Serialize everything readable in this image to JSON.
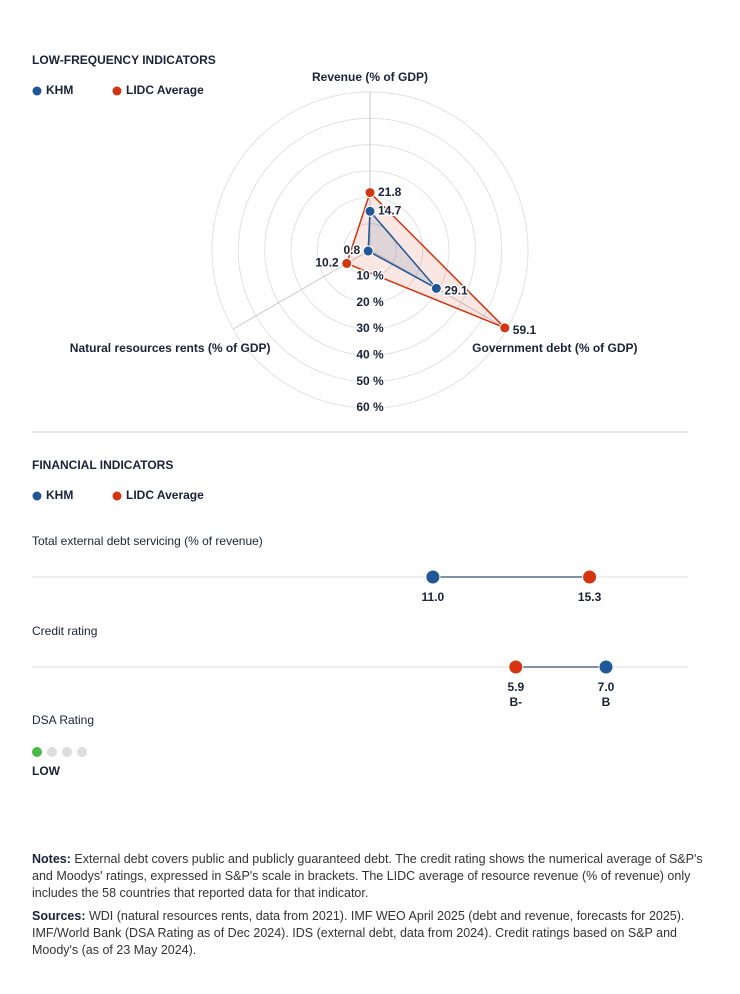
{
  "chart_data": [
    {
      "type": "radar",
      "title": "LOW-FREQUENCY INDICATORS",
      "categories": [
        "Revenue (% of GDP)",
        "Government debt (% of GDP)",
        "Natural resources rents (% of GDP)"
      ],
      "series": [
        {
          "name": "KHM",
          "color": "#1f5797",
          "values": [
            14.7,
            29.1,
            0.8
          ]
        },
        {
          "name": "LIDC Average",
          "color": "#d4340f",
          "values": [
            21.8,
            59.1,
            10.2
          ]
        }
      ],
      "ylim": [
        0,
        60
      ],
      "yticks": [
        {
          "value": 10,
          "label": "10 %"
        },
        {
          "value": 20,
          "label": "20 %"
        },
        {
          "value": 30,
          "label": "30 %"
        },
        {
          "value": 40,
          "label": "40 %"
        },
        {
          "value": 50,
          "label": "50 %"
        },
        {
          "value": 60,
          "label": "60 %"
        }
      ],
      "grid": true
    },
    {
      "type": "dumbbell",
      "title": "FINANCIAL INDICATORS",
      "series": [
        {
          "name": "KHM",
          "color": "#1f5797"
        },
        {
          "name": "LIDC Average",
          "color": "#d4340f"
        }
      ],
      "panels": [
        {
          "label": "Total external debt servicing (% of revenue)",
          "values": [
            11.0,
            15.3
          ],
          "value_labels": [
            "11.0",
            "15.3"
          ],
          "xlim": [
            0,
            18
          ]
        },
        {
          "label": "Credit rating",
          "values": [
            7.0,
            5.9
          ],
          "value_labels": [
            "7.0",
            "5.9"
          ],
          "ratings": [
            "B",
            "B-"
          ],
          "xlim": [
            0,
            8
          ]
        }
      ]
    }
  ],
  "dsa": {
    "title": "DSA Rating",
    "rating": "LOW",
    "scale_size": 4,
    "position": 1,
    "color": "#4cb84a"
  },
  "notes": {
    "label": "Notes:",
    "text": "External debt covers public and publicly guaranteed debt. The credit rating shows the numerical average of S&P's and Moodys' ratings, expressed in S&P's scale in brackets. The LIDC average of resource revenue (% of revenue) only includes the 58 countries that reported data for that indicator."
  },
  "sources": {
    "label": "Sources:",
    "text": "WDI (natural resources rents, data from 2021). IMF WEO April 2025 (debt and revenue, forecasts for 2025). IMF/World Bank (DSA Rating as of Dec 2024). IDS (external debt, data from 2024). Credit ratings based on S&P and Moody's (as of 23 May 2024)."
  }
}
